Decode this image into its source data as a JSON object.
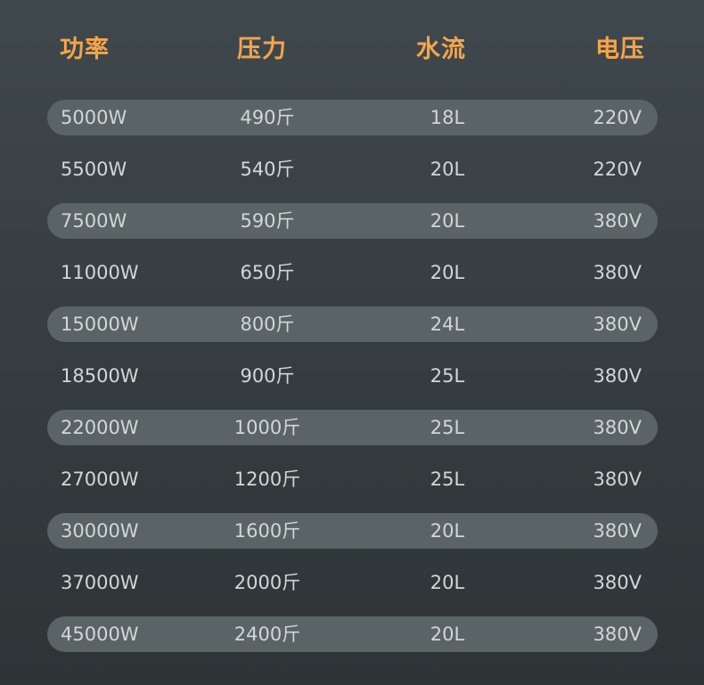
{
  "header": {
    "power": "功率",
    "pressure": "压力",
    "flow": "水流",
    "voltage": "电压"
  },
  "colors": {
    "header": "#f6a54a",
    "stripe": "#5a6366",
    "text": "#d2d6d8"
  },
  "rows": [
    {
      "power": "5000W",
      "pressure": "490斤",
      "flow": "18L",
      "voltage": "220V"
    },
    {
      "power": "5500W",
      "pressure": "540斤",
      "flow": "20L",
      "voltage": "220V"
    },
    {
      "power": "7500W",
      "pressure": "590斤",
      "flow": "20L",
      "voltage": "380V"
    },
    {
      "power": "11000W",
      "pressure": "650斤",
      "flow": "20L",
      "voltage": "380V"
    },
    {
      "power": "15000W",
      "pressure": "800斤",
      "flow": "24L",
      "voltage": "380V"
    },
    {
      "power": "18500W",
      "pressure": "900斤",
      "flow": "25L",
      "voltage": "380V"
    },
    {
      "power": "22000W",
      "pressure": "1000斤",
      "flow": "25L",
      "voltage": "380V"
    },
    {
      "power": "27000W",
      "pressure": "1200斤",
      "flow": "25L",
      "voltage": "380V"
    },
    {
      "power": "30000W",
      "pressure": "1600斤",
      "flow": "20L",
      "voltage": "380V"
    },
    {
      "power": "37000W",
      "pressure": "2000斤",
      "flow": "20L",
      "voltage": "380V"
    },
    {
      "power": "45000W",
      "pressure": "2400斤",
      "flow": "20L",
      "voltage": "380V"
    }
  ]
}
